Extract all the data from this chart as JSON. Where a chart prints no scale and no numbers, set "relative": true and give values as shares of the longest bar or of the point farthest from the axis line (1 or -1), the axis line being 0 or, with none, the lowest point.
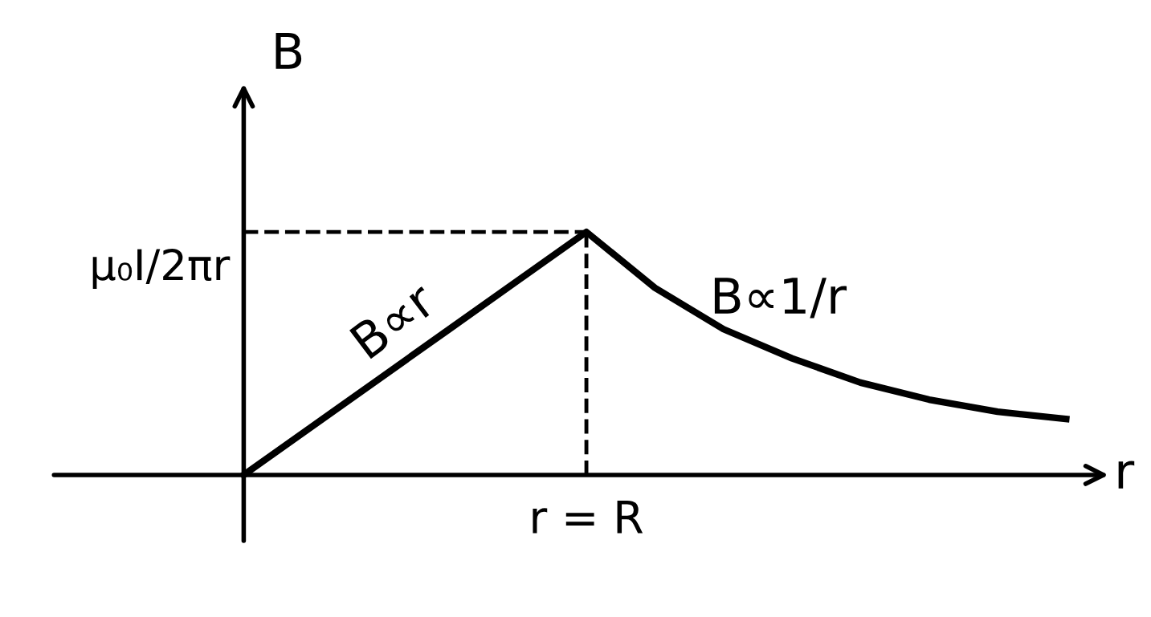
{
  "chart_data": {
    "type": "line",
    "relative": true,
    "xlabel": "r",
    "ylabel": "B",
    "categories": [
      null,
      null,
      null,
      null,
      null,
      null,
      null,
      null,
      null,
      null,
      null,
      null,
      null
    ],
    "series": [
      {
        "color": "#000000",
        "values": [
          0,
          0.2,
          0.4,
          0.6,
          0.8,
          1,
          0.77,
          0.6,
          0.48,
          0.38,
          0.31,
          0.26,
          0.23
        ]
      }
    ],
    "ref_lines": [
      {
        "axis": "y",
        "value": 1,
        "label": "μ₀I/2πr",
        "line_style": "dashed",
        "color": "#000000"
      },
      {
        "axis": "x",
        "label": "r = R",
        "line_style": "dashed",
        "color": "#000000"
      }
    ],
    "annotations": [
      "B∝r",
      "B∝1/r"
    ],
    "marker": "none",
    "line_style": "solid",
    "legend": false
  }
}
